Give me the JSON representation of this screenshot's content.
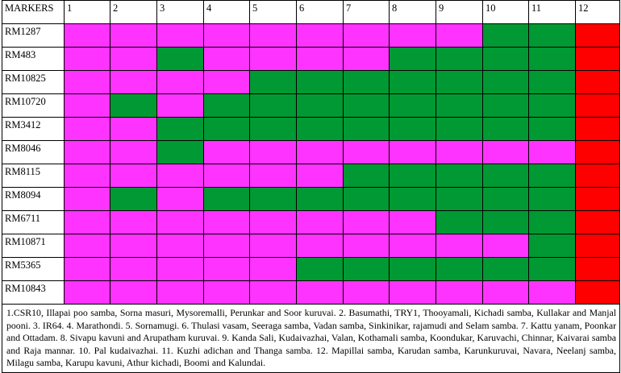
{
  "table": {
    "header": [
      "MARKERS",
      "1",
      "2",
      "3",
      "4",
      "5",
      "6",
      "7",
      "8",
      "9",
      "10",
      "11",
      "12"
    ],
    "colors": {
      "P": "#ff33ff",
      "G": "#009933",
      "R": "#ff0000"
    },
    "rows": [
      {
        "marker": "RM1287",
        "cells": [
          "P",
          "P",
          "P",
          "P",
          "P",
          "P",
          "P",
          "P",
          "P",
          "G",
          "G",
          "R"
        ]
      },
      {
        "marker": "RM483",
        "cells": [
          "P",
          "P",
          "G",
          "P",
          "P",
          "P",
          "P",
          "G",
          "G",
          "G",
          "G",
          "R"
        ]
      },
      {
        "marker": "RM10825",
        "cells": [
          "P",
          "P",
          "P",
          "P",
          "G",
          "G",
          "G",
          "G",
          "G",
          "G",
          "G",
          "R"
        ]
      },
      {
        "marker": "RM10720",
        "cells": [
          "P",
          "G",
          "P",
          "G",
          "G",
          "G",
          "G",
          "G",
          "G",
          "G",
          "G",
          "R"
        ]
      },
      {
        "marker": "RM3412",
        "cells": [
          "P",
          "P",
          "G",
          "G",
          "G",
          "G",
          "G",
          "G",
          "G",
          "G",
          "G",
          "R"
        ]
      },
      {
        "marker": "RM8046",
        "cells": [
          "P",
          "P",
          "G",
          "P",
          "P",
          "P",
          "P",
          "P",
          "P",
          "P",
          "P",
          "R"
        ]
      },
      {
        "marker": "RM8115",
        "cells": [
          "P",
          "P",
          "P",
          "P",
          "P",
          "P",
          "G",
          "G",
          "G",
          "G",
          "G",
          "R"
        ]
      },
      {
        "marker": "RM8094",
        "cells": [
          "P",
          "G",
          "P",
          "G",
          "G",
          "G",
          "G",
          "G",
          "G",
          "G",
          "G",
          "R"
        ]
      },
      {
        "marker": "RM6711",
        "cells": [
          "P",
          "P",
          "P",
          "P",
          "P",
          "P",
          "P",
          "P",
          "G",
          "G",
          "G",
          "R"
        ]
      },
      {
        "marker": "RM10871",
        "cells": [
          "P",
          "P",
          "P",
          "P",
          "P",
          "P",
          "P",
          "P",
          "P",
          "P",
          "G",
          "R"
        ]
      },
      {
        "marker": "RM5365",
        "cells": [
          "P",
          "P",
          "P",
          "P",
          "P",
          "G",
          "G",
          "G",
          "G",
          "G",
          "G",
          "R"
        ]
      },
      {
        "marker": "RM10843",
        "cells": [
          "P",
          "P",
          "P",
          "P",
          "P",
          "P",
          "P",
          "P",
          "P",
          "P",
          "P",
          "R"
        ]
      }
    ]
  },
  "legend_text": "1.CSR10, Illapai poo samba, Sorna masuri, Mysoremalli, Perunkar and Soor kuruvai. 2. Basumathi, TRY1, Thooyamali, Kichadi samba, Kullakar and Manjal pooni. 3. IR64. 4. Marathondi. 5. Sornamugi. 6. Thulasi vasam, Seeraga samba, Vadan samba, Sinkinikar, rajamudi and Selam samba. 7. Kattu yanam, Poonkar and Ottadam. 8. Sivapu kavuni and Arupatham kuruvai. 9. Kanda Sali, Kudaivazhai, Valan, Kothamali samba, Koondukar, Karuvachi, Chinnar, Kaivarai samba and Raja mannar. 10. Pal kudaivazhai. 11. Kuzhi adichan and Thanga samba. 12. Mapillai samba, Karudan samba, Karunkuruvai, Navara, Neelanj samba, Milagu samba, Karupu kavuni, Athur kichadi, Boomi and Kalundai."
}
